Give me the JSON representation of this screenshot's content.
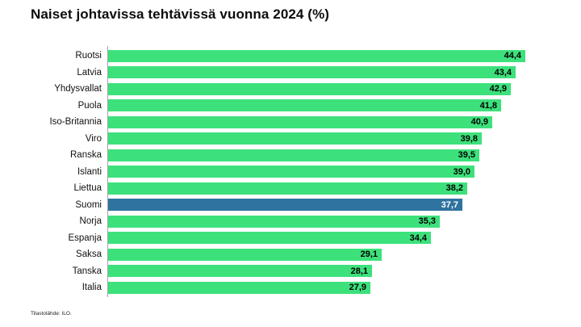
{
  "chart_data": {
    "type": "bar",
    "orientation": "horizontal",
    "title": "Naiset johtavissa tehtävissä vuonna 2024 (%)",
    "source": "Tilastolähde: ILO.",
    "categories": [
      "Ruotsi",
      "Latvia",
      "Yhdysvallat",
      "Puola",
      "Iso-Britannia",
      "Viro",
      "Ranska",
      "Islanti",
      "Liettua",
      "Suomi",
      "Norja",
      "Espanja",
      "Saksa",
      "Tanska",
      "Italia"
    ],
    "values": [
      44.4,
      43.4,
      42.9,
      41.8,
      40.9,
      39.8,
      39.5,
      39.0,
      38.2,
      37.7,
      35.3,
      34.4,
      29.1,
      28.1,
      27.9
    ],
    "value_labels": [
      "44,4",
      "43,4",
      "42,9",
      "41,8",
      "40,9",
      "39,8",
      "39,5",
      "39,0",
      "38,2",
      "37,7",
      "35,3",
      "34,4",
      "29,1",
      "28,1",
      "27,9"
    ],
    "highlight_index": 9,
    "xlim": [
      0,
      50
    ],
    "grid": false,
    "legend": "none",
    "colors": {
      "bar": "#3DE17C",
      "highlight_bar": "#2F73A0",
      "value_label": "#000000",
      "highlight_value_label": "#FFFFFF",
      "axis_line": "#A3A3A3",
      "title": "#0D0D0D",
      "background": "#FFFFFF"
    }
  }
}
